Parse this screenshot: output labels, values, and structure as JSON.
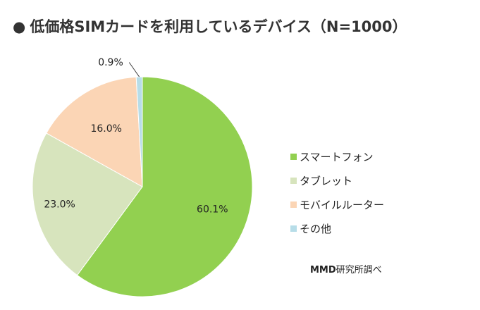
{
  "title_bullet": "●",
  "chart_data": {
    "type": "pie",
    "title": "低価格SIMカードを利用しているデバイス（N=1000）",
    "slices": [
      {
        "name": "スマートフォン",
        "value": 60.1,
        "label": "60.1%",
        "color": "#92d050"
      },
      {
        "name": "タブレット",
        "value": 23.0,
        "label": "23.0%",
        "color": "#d7e4bd"
      },
      {
        "name": "モバイルルーター",
        "value": 16.0,
        "label": "16.0%",
        "color": "#fbd5b5"
      },
      {
        "name": "その他",
        "value": 0.9,
        "label": "0.9%",
        "color": "#b7dde8"
      }
    ],
    "legend_position": "right"
  },
  "credit": {
    "brand": "MMD",
    "text": "研究所調べ"
  }
}
